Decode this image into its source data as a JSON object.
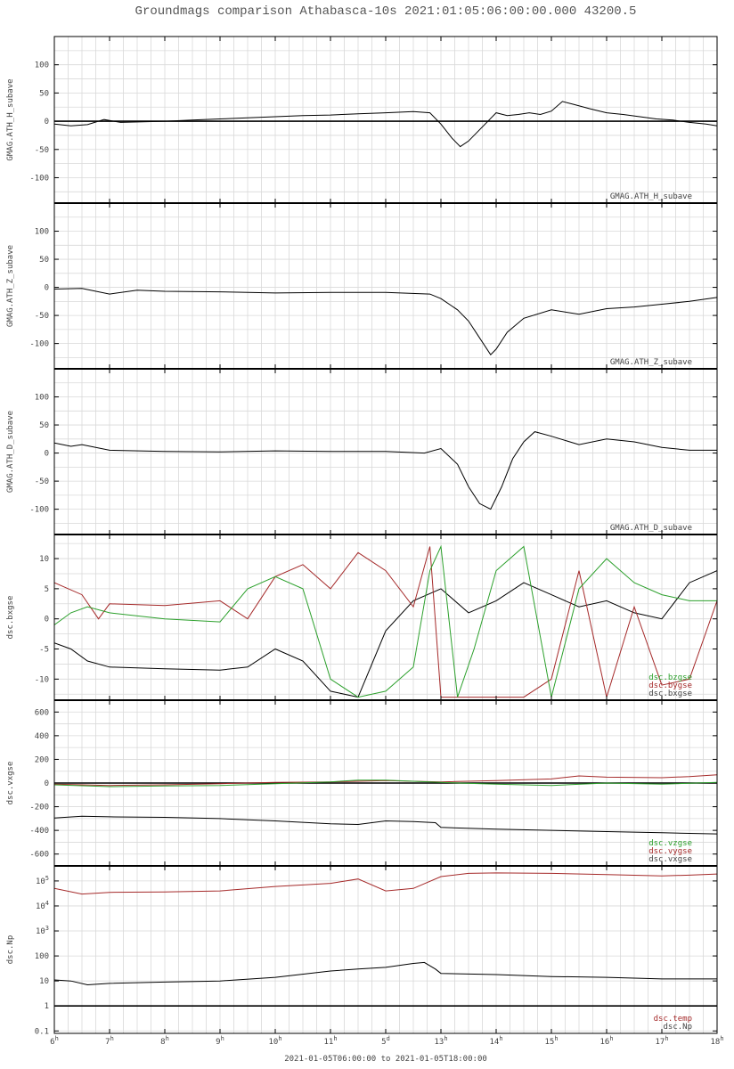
{
  "page": {
    "title": "Groundmags comparison Athabasca-10s 2021:01:05:06:00:00.000 43200.5",
    "footer": "2021-01-05T06:00:00 to 2021-01-05T18:00:00"
  },
  "time_axis": {
    "x_range": [
      6,
      18
    ],
    "ticks": [
      {
        "t": 6,
        "label": "6",
        "sup": "h"
      },
      {
        "t": 7,
        "label": "7",
        "sup": "h"
      },
      {
        "t": 8,
        "label": "8",
        "sup": "h"
      },
      {
        "t": 9,
        "label": "9",
        "sup": "h"
      },
      {
        "t": 10,
        "label": "10",
        "sup": "h"
      },
      {
        "t": 11,
        "label": "11",
        "sup": "h"
      },
      {
        "t": 12,
        "label": "5",
        "sup": "d"
      },
      {
        "t": 13,
        "label": "13",
        "sup": "h"
      },
      {
        "t": 14,
        "label": "14",
        "sup": "h"
      },
      {
        "t": 15,
        "label": "15",
        "sup": "h"
      },
      {
        "t": 16,
        "label": "16",
        "sup": "h"
      },
      {
        "t": 17,
        "label": "17",
        "sup": "h"
      },
      {
        "t": 18,
        "label": "18",
        "sup": "h"
      }
    ]
  },
  "colors": {
    "black": "#000000",
    "red": "#a52a2a",
    "green": "#2ca02c",
    "grid": "#d9d9d9"
  },
  "chart_data": [
    {
      "type": "line",
      "ylabel": "GMAG.ATH_H_subave",
      "ylim": [
        -145,
        150
      ],
      "yticks": [
        {
          "v": 100,
          "label": "100"
        },
        {
          "v": 50,
          "label": "50"
        },
        {
          "v": 0,
          "label": "0"
        },
        {
          "v": -50,
          "label": "-50"
        },
        {
          "v": -100,
          "label": "-100"
        }
      ],
      "zero_line": true,
      "series": [
        {
          "name": "GMAG.ATH_H_subave",
          "color": "#000000",
          "x": [
            6.0,
            6.3,
            6.6,
            6.9,
            7.2,
            7.6,
            8.0,
            8.5,
            9.0,
            9.5,
            10.0,
            10.5,
            11.0,
            11.5,
            12.0,
            12.5,
            12.8,
            13.0,
            13.2,
            13.35,
            13.5,
            13.65,
            13.8,
            14.0,
            14.2,
            14.4,
            14.6,
            14.8,
            15.0,
            15.2,
            15.4,
            15.7,
            16.0,
            16.3,
            16.6,
            16.9,
            17.2,
            17.5,
            17.8,
            18.0
          ],
          "y": [
            -5,
            -8,
            -6,
            3,
            -2,
            -1,
            0,
            2,
            4,
            6,
            8,
            10,
            11,
            13,
            15,
            17,
            15,
            -5,
            -30,
            -45,
            -35,
            -20,
            -5,
            15,
            10,
            12,
            15,
            12,
            18,
            35,
            30,
            22,
            15,
            12,
            8,
            4,
            2,
            -2,
            -5,
            -8
          ]
        }
      ]
    },
    {
      "type": "line",
      "ylabel": "GMAG.ATH_Z_subave",
      "ylim": [
        -145,
        150
      ],
      "yticks": [
        {
          "v": 100,
          "label": "100"
        },
        {
          "v": 50,
          "label": "50"
        },
        {
          "v": 0,
          "label": "0"
        },
        {
          "v": -50,
          "label": "-50"
        },
        {
          "v": -100,
          "label": "-100"
        }
      ],
      "zero_line": false,
      "series": [
        {
          "name": "GMAG.ATH_Z_subave",
          "color": "#000000",
          "x": [
            6.0,
            6.5,
            7.0,
            7.5,
            8.0,
            9.0,
            10.0,
            11.0,
            12.0,
            12.8,
            13.0,
            13.3,
            13.5,
            13.7,
            13.9,
            14.0,
            14.2,
            14.5,
            15.0,
            15.5,
            16.0,
            16.5,
            17.0,
            17.5,
            18.0
          ],
          "y": [
            -3,
            -2,
            -12,
            -5,
            -7,
            -8,
            -10,
            -9,
            -9,
            -12,
            -20,
            -40,
            -60,
            -90,
            -120,
            -110,
            -80,
            -55,
            -40,
            -48,
            -38,
            -35,
            -30,
            -25,
            -18
          ]
        }
      ]
    },
    {
      "type": "line",
      "ylabel": "GMAG.ATH_D_subave",
      "ylim": [
        -145,
        150
      ],
      "yticks": [
        {
          "v": 100,
          "label": "100"
        },
        {
          "v": 50,
          "label": "50"
        },
        {
          "v": 0,
          "label": "0"
        },
        {
          "v": -50,
          "label": "-50"
        },
        {
          "v": -100,
          "label": "-100"
        }
      ],
      "zero_line": false,
      "series": [
        {
          "name": "GMAG.ATH_D_subave",
          "color": "#000000",
          "x": [
            6.0,
            6.3,
            6.5,
            7.0,
            8.0,
            9.0,
            10.0,
            11.0,
            12.0,
            12.7,
            13.0,
            13.3,
            13.5,
            13.7,
            13.9,
            14.1,
            14.3,
            14.5,
            14.7,
            15.0,
            15.5,
            16.0,
            16.5,
            17.0,
            17.5,
            18.0
          ],
          "y": [
            18,
            12,
            15,
            5,
            3,
            2,
            4,
            3,
            3,
            0,
            8,
            -20,
            -60,
            -90,
            -100,
            -60,
            -10,
            20,
            38,
            30,
            15,
            25,
            20,
            10,
            5,
            5
          ]
        }
      ]
    },
    {
      "type": "line",
      "ylabel": "dsc.bxgse",
      "ylim": [
        -13.5,
        14
      ],
      "yticks": [
        {
          "v": 10,
          "label": "10"
        },
        {
          "v": 5,
          "label": "5"
        },
        {
          "v": 0,
          "label": "0"
        },
        {
          "v": -5,
          "label": "-5"
        },
        {
          "v": -10,
          "label": "-10"
        }
      ],
      "zero_line": false,
      "series": [
        {
          "name": "dsc.bxgse",
          "color": "#000000",
          "x": [
            6.0,
            6.3,
            6.6,
            7.0,
            8.0,
            9.0,
            9.5,
            10.0,
            10.5,
            11.0,
            11.5,
            12.0,
            12.5,
            13.0,
            13.5,
            14.0,
            14.5,
            15.0,
            15.5,
            16.0,
            16.5,
            17.0,
            17.5,
            18.0
          ],
          "y": [
            -4,
            -5,
            -7,
            -8,
            -8.3,
            -8.5,
            -8,
            -5,
            -7,
            -12,
            -13,
            -2,
            3,
            5,
            1,
            3,
            6,
            4,
            2,
            3,
            1,
            0,
            6,
            8
          ]
        },
        {
          "name": "dsc.bygse",
          "color": "#a52a2a",
          "x": [
            6.0,
            6.5,
            6.8,
            7.0,
            8.0,
            9.0,
            9.5,
            10.0,
            10.5,
            11.0,
            11.5,
            12.0,
            12.5,
            12.8,
            13.0,
            13.5,
            14.0,
            14.5,
            15.0,
            15.5,
            16.0,
            16.5,
            17.0,
            17.5,
            18.0
          ],
          "y": [
            6,
            4,
            0,
            2.5,
            2.2,
            3,
            0,
            7,
            9,
            5,
            11,
            8,
            2,
            12,
            -13,
            -13,
            -13,
            -13,
            -10,
            8,
            -13,
            2,
            -11,
            -10,
            3
          ]
        },
        {
          "name": "dsc.bzgse",
          "color": "#2ca02c",
          "x": [
            6.0,
            6.3,
            6.6,
            7.0,
            8.0,
            9.0,
            9.5,
            10.0,
            10.5,
            11.0,
            11.5,
            12.0,
            12.5,
            12.8,
            13.0,
            13.3,
            13.6,
            14.0,
            14.5,
            15.0,
            15.5,
            16.0,
            16.5,
            17.0,
            17.5,
            18.0
          ],
          "y": [
            -1,
            1,
            2,
            1,
            0,
            -0.5,
            5,
            7,
            5,
            -10,
            -13,
            -12,
            -8,
            8,
            12,
            -13,
            -5,
            8,
            12,
            -13,
            5,
            10,
            6,
            4,
            3,
            3
          ]
        }
      ]
    },
    {
      "type": "line",
      "ylabel": "dsc.vxgse",
      "ylim": [
        -700,
        700
      ],
      "yticks": [
        {
          "v": 600,
          "label": "600"
        },
        {
          "v": 400,
          "label": "400"
        },
        {
          "v": 200,
          "label": "200"
        },
        {
          "v": 0,
          "label": "0"
        },
        {
          "v": -200,
          "label": "-200"
        },
        {
          "v": -400,
          "label": "-400"
        },
        {
          "v": -600,
          "label": "-600"
        }
      ],
      "zero_line": true,
      "series": [
        {
          "name": "dsc.vxgse",
          "color": "#000000",
          "x": [
            6.0,
            6.5,
            7.0,
            8.0,
            9.0,
            10.0,
            11.0,
            11.5,
            12.0,
            12.5,
            12.9,
            13.0,
            14.0,
            15.0,
            16.0,
            17.0,
            18.0
          ],
          "y": [
            -295,
            -280,
            -285,
            -290,
            -300,
            -320,
            -345,
            -350,
            -320,
            -325,
            -335,
            -375,
            -390,
            -400,
            -410,
            -420,
            -430
          ]
        },
        {
          "name": "dsc.vygse",
          "color": "#a52a2a",
          "x": [
            6.0,
            7.0,
            8.0,
            9.0,
            10.0,
            11.0,
            12.0,
            13.0,
            14.0,
            15.0,
            15.5,
            16.0,
            17.0,
            17.5,
            18.0
          ],
          "y": [
            -10,
            -20,
            -15,
            -5,
            5,
            10,
            20,
            10,
            20,
            35,
            60,
            50,
            45,
            55,
            70
          ]
        },
        {
          "name": "dsc.vzgse",
          "color": "#2ca02c",
          "x": [
            6.0,
            7.0,
            8.0,
            9.0,
            10.0,
            11.0,
            11.5,
            12.0,
            13.0,
            14.0,
            15.0,
            16.0,
            17.0,
            18.0
          ],
          "y": [
            -15,
            -30,
            -25,
            -20,
            -5,
            10,
            25,
            25,
            5,
            -10,
            -20,
            0,
            -10,
            5
          ]
        }
      ]
    },
    {
      "type": "line",
      "ylabel": "dsc.Np",
      "log": true,
      "ylim": [
        0.08,
        400000
      ],
      "yticks": [
        {
          "v": 0.1,
          "label": "0.1"
        },
        {
          "v": 1,
          "label": "1"
        },
        {
          "v": 10,
          "label": "10"
        },
        {
          "v": 100,
          "label": "100"
        },
        {
          "v": 1000,
          "label": "10",
          "sup": "3"
        },
        {
          "v": 10000,
          "label": "10",
          "sup": "4"
        },
        {
          "v": 100000,
          "label": "10",
          "sup": "5"
        }
      ],
      "zero_line": false,
      "baseline": 1,
      "series": [
        {
          "name": "dsc.Np",
          "color": "#000000",
          "x": [
            6.0,
            6.3,
            6.6,
            7.0,
            8.0,
            9.0,
            10.0,
            11.0,
            11.5,
            12.0,
            12.5,
            12.7,
            12.9,
            13.0,
            14.0,
            15.0,
            16.0,
            17.0,
            18.0
          ],
          "y": [
            11,
            10,
            7,
            8,
            9,
            10,
            14,
            25,
            30,
            35,
            50,
            55,
            30,
            20,
            18,
            15,
            14,
            12,
            12
          ]
        },
        {
          "name": "dsc.temp",
          "color": "#a52a2a",
          "x": [
            6.0,
            6.5,
            7.0,
            8.0,
            9.0,
            10.0,
            11.0,
            11.5,
            12.0,
            12.5,
            13.0,
            13.5,
            14.0,
            15.0,
            16.0,
            17.0,
            17.5,
            18.0
          ],
          "y": [
            50000,
            30000,
            35000,
            36000,
            40000,
            60000,
            80000,
            120000,
            40000,
            50000,
            150000,
            200000,
            210000,
            200000,
            180000,
            160000,
            170000,
            190000
          ]
        }
      ]
    }
  ]
}
